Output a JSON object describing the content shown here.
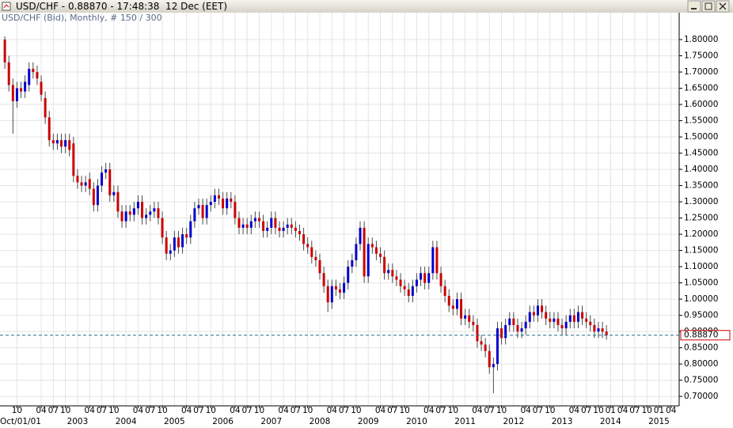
{
  "window": {
    "title": "USD/CHF - 0.88870 - 17:48:38  12 Dec (EET)"
  },
  "chart_data": {
    "type": "candlestick",
    "subtitle": "USD/CHF (Bid), Monthly, # 150 / 300",
    "x_cursor_label": "Oct/01/01",
    "up_color": "#0000cc",
    "down_color": "#cc0000",
    "grid": true,
    "xlim": [
      -1.2,
      167
    ],
    "ylim": [
      0.671,
      1.883
    ],
    "yticks": [
      {
        "value": 0.7,
        "label": "0.70000"
      },
      {
        "value": 0.75,
        "label": "0.75000"
      },
      {
        "value": 0.8,
        "label": "0.80000"
      },
      {
        "value": 0.85,
        "label": "0.85000"
      },
      {
        "value": 0.9,
        "label": "0.90000"
      },
      {
        "value": 0.95,
        "label": "0.95000"
      },
      {
        "value": 1.0,
        "label": "1.00000"
      },
      {
        "value": 1.05,
        "label": "1.05000"
      },
      {
        "value": 1.1,
        "label": "1.10000"
      },
      {
        "value": 1.15,
        "label": "1.15000"
      },
      {
        "value": 1.2,
        "label": "1.20000"
      },
      {
        "value": 1.25,
        "label": "1.25000"
      },
      {
        "value": 1.3,
        "label": "1.30000"
      },
      {
        "value": 1.35,
        "label": "1.35000"
      },
      {
        "value": 1.4,
        "label": "1.40000"
      },
      {
        "value": 1.45,
        "label": "1.45000"
      },
      {
        "value": 1.5,
        "label": "1.50000"
      },
      {
        "value": 1.55,
        "label": "1.55000"
      },
      {
        "value": 1.6,
        "label": "1.60000"
      },
      {
        "value": 1.65,
        "label": "1.65000"
      },
      {
        "value": 1.7,
        "label": "1.70000"
      },
      {
        "value": 1.75,
        "label": "1.75000"
      },
      {
        "value": 1.8,
        "label": "1.80000"
      }
    ],
    "price_line": {
      "value": 0.8887,
      "label": "0.88870"
    },
    "xticks": [
      {
        "value": 3,
        "label": "10"
      },
      {
        "value": 9,
        "label": "04"
      },
      {
        "value": 12,
        "label": "07"
      },
      {
        "value": 15,
        "label": "10"
      },
      {
        "value": 21,
        "label": "04"
      },
      {
        "value": 24,
        "label": "07"
      },
      {
        "value": 27,
        "label": "10"
      },
      {
        "value": 33,
        "label": "04"
      },
      {
        "value": 36,
        "label": "07"
      },
      {
        "value": 39,
        "label": "10"
      },
      {
        "value": 45,
        "label": "04"
      },
      {
        "value": 48,
        "label": "07"
      },
      {
        "value": 51,
        "label": "10"
      },
      {
        "value": 57,
        "label": "04"
      },
      {
        "value": 60,
        "label": "07"
      },
      {
        "value": 63,
        "label": "10"
      },
      {
        "value": 69,
        "label": "04"
      },
      {
        "value": 72,
        "label": "07"
      },
      {
        "value": 75,
        "label": "10"
      },
      {
        "value": 81,
        "label": "04"
      },
      {
        "value": 84,
        "label": "07"
      },
      {
        "value": 87,
        "label": "10"
      },
      {
        "value": 93,
        "label": "04"
      },
      {
        "value": 96,
        "label": "07"
      },
      {
        "value": 99,
        "label": "10"
      },
      {
        "value": 105,
        "label": "04"
      },
      {
        "value": 108,
        "label": "07"
      },
      {
        "value": 111,
        "label": "10"
      },
      {
        "value": 117,
        "label": "04"
      },
      {
        "value": 120,
        "label": "07"
      },
      {
        "value": 123,
        "label": "10"
      },
      {
        "value": 129,
        "label": "04"
      },
      {
        "value": 132,
        "label": "07"
      },
      {
        "value": 135,
        "label": "10"
      },
      {
        "value": 141,
        "label": "04"
      },
      {
        "value": 144,
        "label": "07"
      },
      {
        "value": 147,
        "label": "10"
      },
      {
        "value": 150,
        "label": "01"
      },
      {
        "value": 153,
        "label": "04"
      },
      {
        "value": 156,
        "label": "07"
      },
      {
        "value": 159,
        "label": "10"
      },
      {
        "value": 162,
        "label": "01"
      },
      {
        "value": 165,
        "label": "04"
      }
    ],
    "xyears": [
      {
        "value": 18,
        "label": "2003"
      },
      {
        "value": 30,
        "label": "2004"
      },
      {
        "value": 42,
        "label": "2005"
      },
      {
        "value": 54,
        "label": "2006"
      },
      {
        "value": 66,
        "label": "2007"
      },
      {
        "value": 78,
        "label": "2008"
      },
      {
        "value": 90,
        "label": "2009"
      },
      {
        "value": 102,
        "label": "2010"
      },
      {
        "value": 114,
        "label": "2011"
      },
      {
        "value": 126,
        "label": "2012"
      },
      {
        "value": 138,
        "label": "2013"
      },
      {
        "value": 150,
        "label": "2014"
      },
      {
        "value": 162,
        "label": "2015"
      }
    ],
    "open": [
      1.8,
      1.73,
      1.66,
      1.61,
      1.65,
      1.64,
      1.66,
      1.71,
      1.7,
      1.67,
      1.62,
      1.56,
      1.49,
      1.48,
      1.49,
      1.47,
      1.49,
      1.48,
      1.38,
      1.36,
      1.35,
      1.37,
      1.34,
      1.29,
      1.35,
      1.39,
      1.4,
      1.32,
      1.33,
      1.27,
      1.24,
      1.27,
      1.26,
      1.28,
      1.3,
      1.25,
      1.26,
      1.27,
      1.28,
      1.25,
      1.19,
      1.14,
      1.15,
      1.19,
      1.16,
      1.2,
      1.19,
      1.24,
      1.28,
      1.29,
      1.25,
      1.29,
      1.3,
      1.32,
      1.31,
      1.28,
      1.31,
      1.3,
      1.25,
      1.22,
      1.23,
      1.22,
      1.24,
      1.25,
      1.24,
      1.21,
      1.22,
      1.25,
      1.22,
      1.21,
      1.22,
      1.23,
      1.22,
      1.21,
      1.2,
      1.17,
      1.16,
      1.13,
      1.12,
      1.08,
      1.04,
      0.99,
      1.04,
      1.03,
      1.02,
      1.05,
      1.1,
      1.12,
      1.17,
      1.22,
      1.07,
      1.17,
      1.16,
      1.14,
      1.13,
      1.08,
      1.09,
      1.07,
      1.06,
      1.04,
      1.03,
      1.01,
      1.04,
      1.06,
      1.08,
      1.05,
      1.08,
      1.16,
      1.08,
      1.04,
      1.01,
      0.98,
      0.97,
      1.0,
      0.94,
      0.95,
      0.93,
      0.92,
      0.87,
      0.86,
      0.84,
      0.79,
      0.8,
      0.91,
      0.88,
      0.92,
      0.94,
      0.92,
      0.9,
      0.91,
      0.93,
      0.96,
      0.95,
      0.98,
      0.96,
      0.94,
      0.93,
      0.94,
      0.92,
      0.91,
      0.93,
      0.95,
      0.93,
      0.96,
      0.94,
      0.93,
      0.92,
      0.9,
      0.91,
      0.9
    ],
    "high": [
      1.81,
      1.75,
      1.68,
      1.67,
      1.67,
      1.69,
      1.73,
      1.73,
      1.72,
      1.69,
      1.64,
      1.58,
      1.51,
      1.51,
      1.51,
      1.51,
      1.51,
      1.5,
      1.4,
      1.38,
      1.38,
      1.39,
      1.36,
      1.37,
      1.41,
      1.42,
      1.42,
      1.35,
      1.35,
      1.29,
      1.29,
      1.29,
      1.3,
      1.32,
      1.32,
      1.28,
      1.29,
      1.3,
      1.3,
      1.27,
      1.21,
      1.17,
      1.21,
      1.21,
      1.22,
      1.22,
      1.26,
      1.3,
      1.31,
      1.31,
      1.31,
      1.32,
      1.34,
      1.34,
      1.33,
      1.33,
      1.33,
      1.32,
      1.27,
      1.25,
      1.25,
      1.26,
      1.27,
      1.27,
      1.26,
      1.24,
      1.27,
      1.27,
      1.24,
      1.24,
      1.25,
      1.25,
      1.24,
      1.23,
      1.22,
      1.19,
      1.18,
      1.15,
      1.14,
      1.1,
      1.06,
      1.06,
      1.06,
      1.05,
      1.07,
      1.12,
      1.14,
      1.19,
      1.24,
      1.24,
      1.19,
      1.19,
      1.18,
      1.16,
      1.15,
      1.11,
      1.11,
      1.09,
      1.08,
      1.06,
      1.05,
      1.06,
      1.08,
      1.1,
      1.1,
      1.1,
      1.18,
      1.18,
      1.1,
      1.06,
      1.03,
      1.0,
      1.02,
      1.02,
      0.97,
      0.97,
      0.95,
      0.94,
      0.89,
      0.88,
      0.86,
      0.82,
      0.93,
      0.93,
      0.94,
      0.96,
      0.96,
      0.94,
      0.93,
      0.95,
      0.98,
      0.98,
      1.0,
      1.0,
      0.98,
      0.96,
      0.96,
      0.96,
      0.94,
      0.95,
      0.97,
      0.97,
      0.98,
      0.98,
      0.96,
      0.95,
      0.94,
      0.93,
      0.93,
      0.92
    ],
    "low": [
      1.71,
      1.64,
      1.51,
      1.59,
      1.62,
      1.62,
      1.64,
      1.68,
      1.66,
      1.61,
      1.54,
      1.47,
      1.46,
      1.46,
      1.45,
      1.45,
      1.44,
      1.36,
      1.34,
      1.33,
      1.33,
      1.32,
      1.27,
      1.27,
      1.33,
      1.37,
      1.3,
      1.3,
      1.25,
      1.22,
      1.22,
      1.24,
      1.24,
      1.26,
      1.23,
      1.23,
      1.24,
      1.25,
      1.23,
      1.17,
      1.12,
      1.12,
      1.13,
      1.14,
      1.14,
      1.17,
      1.17,
      1.22,
      1.26,
      1.23,
      1.23,
      1.27,
      1.28,
      1.29,
      1.26,
      1.26,
      1.28,
      1.23,
      1.2,
      1.2,
      1.2,
      1.2,
      1.22,
      1.22,
      1.19,
      1.19,
      1.2,
      1.2,
      1.19,
      1.19,
      1.2,
      1.2,
      1.19,
      1.18,
      1.15,
      1.14,
      1.11,
      1.1,
      1.06,
      1.02,
      0.96,
      0.97,
      1.01,
      1.0,
      1.0,
      1.03,
      1.08,
      1.1,
      1.15,
      1.05,
      1.05,
      1.14,
      1.12,
      1.11,
      1.06,
      1.06,
      1.05,
      1.04,
      1.02,
      1.01,
      0.99,
      0.99,
      1.02,
      1.04,
      1.03,
      1.03,
      1.06,
      1.06,
      1.02,
      0.99,
      0.96,
      0.95,
      0.95,
      0.92,
      0.92,
      0.91,
      0.9,
      0.85,
      0.84,
      0.82,
      0.77,
      0.71,
      0.78,
      0.86,
      0.86,
      0.9,
      0.9,
      0.88,
      0.88,
      0.89,
      0.91,
      0.93,
      0.93,
      0.94,
      0.92,
      0.91,
      0.91,
      0.9,
      0.89,
      0.89,
      0.91,
      0.91,
      0.91,
      0.92,
      0.91,
      0.9,
      0.88,
      0.88,
      0.88,
      0.875
    ],
    "close": [
      1.73,
      1.66,
      1.61,
      1.65,
      1.64,
      1.67,
      1.71,
      1.7,
      1.68,
      1.63,
      1.56,
      1.49,
      1.48,
      1.49,
      1.47,
      1.49,
      1.46,
      1.38,
      1.36,
      1.35,
      1.36,
      1.34,
      1.29,
      1.35,
      1.39,
      1.4,
      1.32,
      1.33,
      1.27,
      1.24,
      1.27,
      1.26,
      1.28,
      1.3,
      1.25,
      1.26,
      1.27,
      1.28,
      1.25,
      1.19,
      1.14,
      1.15,
      1.19,
      1.16,
      1.2,
      1.19,
      1.24,
      1.28,
      1.29,
      1.25,
      1.29,
      1.3,
      1.32,
      1.31,
      1.28,
      1.31,
      1.3,
      1.25,
      1.22,
      1.23,
      1.22,
      1.24,
      1.25,
      1.24,
      1.21,
      1.22,
      1.25,
      1.22,
      1.21,
      1.22,
      1.23,
      1.22,
      1.21,
      1.2,
      1.17,
      1.16,
      1.13,
      1.12,
      1.08,
      1.04,
      0.99,
      1.04,
      1.03,
      1.02,
      1.05,
      1.1,
      1.12,
      1.17,
      1.22,
      1.07,
      1.17,
      1.16,
      1.14,
      1.13,
      1.08,
      1.09,
      1.07,
      1.06,
      1.04,
      1.03,
      1.01,
      1.04,
      1.06,
      1.08,
      1.05,
      1.08,
      1.16,
      1.08,
      1.04,
      1.01,
      0.98,
      0.97,
      1.0,
      0.94,
      0.95,
      0.93,
      0.92,
      0.87,
      0.86,
      0.84,
      0.79,
      0.8,
      0.91,
      0.88,
      0.92,
      0.94,
      0.92,
      0.9,
      0.91,
      0.93,
      0.96,
      0.95,
      0.98,
      0.96,
      0.94,
      0.93,
      0.94,
      0.92,
      0.91,
      0.93,
      0.95,
      0.93,
      0.96,
      0.94,
      0.93,
      0.92,
      0.9,
      0.91,
      0.9,
      0.8887
    ]
  }
}
